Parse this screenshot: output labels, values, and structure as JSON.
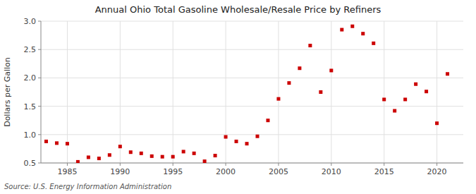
{
  "chart_data": {
    "type": "scatter",
    "title": "Annual Ohio Total Gasoline Wholesale/Resale Price by Refiners",
    "y_label": "Dollars per Gallon",
    "source": "Source: U.S. Energy Information Administration",
    "color": "#cc0000",
    "marker": "square",
    "grid": true,
    "x": [
      1983,
      1984,
      1985,
      1986,
      1987,
      1988,
      1989,
      1990,
      1991,
      1992,
      1993,
      1994,
      1995,
      1996,
      1997,
      1998,
      1999,
      2000,
      2001,
      2002,
      2003,
      2004,
      2005,
      2006,
      2007,
      2008,
      2009,
      2010,
      2011,
      2012,
      2013,
      2014,
      2015,
      2016,
      2017,
      2018,
      2019,
      2020,
      2021
    ],
    "values": [
      0.88,
      0.85,
      0.84,
      0.52,
      0.6,
      0.58,
      0.64,
      0.79,
      0.69,
      0.67,
      0.62,
      0.61,
      0.61,
      0.7,
      0.67,
      0.53,
      0.63,
      0.96,
      0.88,
      0.84,
      0.97,
      1.25,
      1.63,
      1.91,
      2.17,
      2.57,
      1.75,
      2.13,
      2.85,
      2.91,
      2.78,
      2.61,
      1.62,
      1.42,
      1.62,
      1.89,
      1.76,
      1.2,
      2.07
    ],
    "xlim": [
      1982.5,
      2022.5
    ],
    "ylim": [
      0.5,
      3.0
    ],
    "xticks": [
      1985,
      1990,
      1995,
      2000,
      2005,
      2010,
      2015,
      2020
    ],
    "yticks": [
      0.5,
      {
        "value": 1.0,
        "label": "1.0"
      },
      1.5,
      {
        "value": 2.0,
        "label": "2.0"
      },
      2.5,
      {
        "value": 3.0,
        "label": "3.0"
      }
    ]
  }
}
